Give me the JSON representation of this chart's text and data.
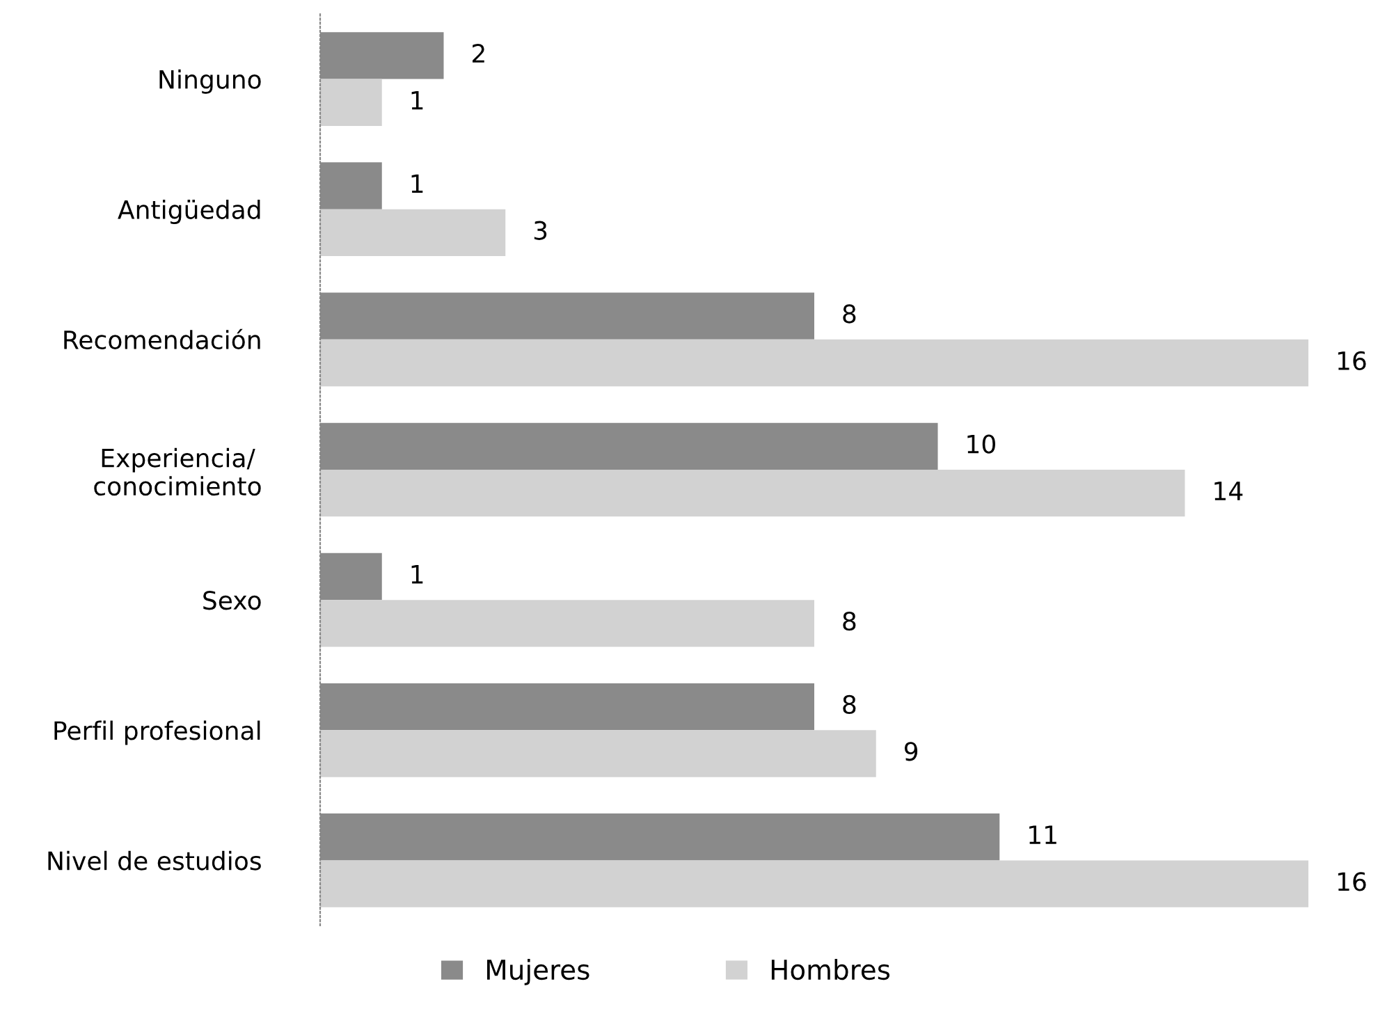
{
  "chart_data": {
    "type": "bar",
    "orientation": "horizontal",
    "categories": [
      "Ninguno",
      "Antigüedad",
      "Recomendación",
      "Experiencia/\nconocimiento",
      "Sexo",
      "Perfil profesional",
      "Nivel de estudios"
    ],
    "series": [
      {
        "name": "Mujeres",
        "color": "#8a8a8a",
        "values": [
          2,
          1,
          8,
          10,
          1,
          8,
          11
        ]
      },
      {
        "name": "Hombres",
        "color": "#d2d2d2",
        "values": [
          1,
          3,
          16,
          14,
          8,
          9,
          16
        ]
      }
    ],
    "data_labels": true,
    "legend": "bottom",
    "grid": false
  }
}
